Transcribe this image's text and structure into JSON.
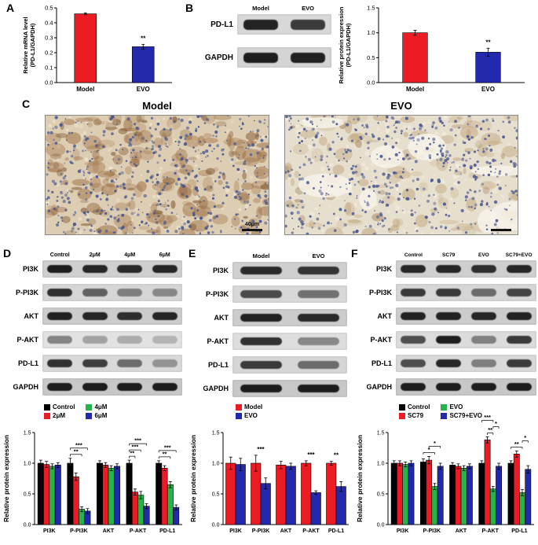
{
  "colors": {
    "red": "#ec1c24",
    "blue": "#2329ad",
    "green": "#27b24a",
    "black": "#000000"
  },
  "panels": {
    "A": {
      "letter": "A"
    },
    "B": {
      "letter": "B",
      "blot": {
        "label_width": 48,
        "lanes": [
          "Model",
          "EVO"
        ],
        "rows": [
          {
            "label": "PD-L1",
            "bands": [
              0.92,
              0.8
            ],
            "bg": "#d8d8d8"
          },
          {
            "label": "GAPDH",
            "bands": [
              0.95,
              0.93
            ],
            "bg": "#d4d4d4"
          }
        ]
      }
    },
    "C": {
      "letter": "C",
      "images": [
        {
          "title": "Model",
          "scale_label": "40μm",
          "bg": "#ddcdb2",
          "blob_color": "#96653a",
          "blob2_color": "#6e4218",
          "nuclei_color": "#44548e",
          "light_color": "#efe5cf",
          "patch_color": "#f6f1e7",
          "blobs": 150,
          "blobs2": 60,
          "nuclei": 520,
          "lights": 150,
          "patches": 0
        },
        {
          "title": "EVO",
          "scale_label": "",
          "bg": "#e7dfcd",
          "blob_color": "#bb9c72",
          "blob2_color": "#9a7a50",
          "nuclei_color": "#4a5890",
          "light_color": "#f3ecdd",
          "patch_color": "#f7f3ea",
          "blobs": 90,
          "blobs2": 25,
          "nuclei": 500,
          "lights": 200,
          "patches": 8
        }
      ]
    },
    "D": {
      "letter": "D",
      "blot": {
        "label_width": 48,
        "lanes": [
          "Control",
          "2μM",
          "4μM",
          "6μM"
        ],
        "rows": [
          {
            "label": "PI3K",
            "bands": [
              0.95,
              0.9,
              0.88,
              0.9
            ],
            "bg": "#cfcfcf"
          },
          {
            "label": "P-PI3K",
            "bands": [
              0.85,
              0.6,
              0.45,
              0.4
            ],
            "bg": "#d6d6d6"
          },
          {
            "label": "AKT",
            "bands": [
              0.92,
              0.9,
              0.86,
              0.9
            ],
            "bg": "#cccccc"
          },
          {
            "label": "P-AKT",
            "bands": [
              0.45,
              0.3,
              0.26,
              0.22
            ],
            "bg": "#e2e2e2"
          },
          {
            "label": "PD-L1",
            "bands": [
              0.85,
              0.78,
              0.55,
              0.35
            ],
            "bg": "#d9d9d9"
          },
          {
            "label": "GAPDH",
            "bands": [
              0.95,
              0.95,
              0.95,
              0.95
            ],
            "bg": "#c8c8c8"
          }
        ]
      }
    },
    "E": {
      "letter": "E",
      "blot": {
        "label_width": 52,
        "lanes": [
          "Model",
          "EVO"
        ],
        "rows": [
          {
            "label": "PI3K",
            "bands": [
              0.88,
              0.82
            ],
            "bg": "#cfcfcf"
          },
          {
            "label": "P-PI3K",
            "bands": [
              0.72,
              0.52
            ],
            "bg": "#d8d8d8"
          },
          {
            "label": "AKT",
            "bands": [
              0.92,
              0.88
            ],
            "bg": "#cccccc"
          },
          {
            "label": "P-AKT",
            "bands": [
              0.85,
              0.42
            ],
            "bg": "#dedede"
          },
          {
            "label": "PD-L1",
            "bands": [
              0.8,
              0.55
            ],
            "bg": "#d6d6d6"
          },
          {
            "label": "GAPDH",
            "bands": [
              0.95,
              0.95
            ],
            "bg": "#c8c8c8"
          }
        ]
      }
    },
    "F": {
      "letter": "F",
      "blot": {
        "label_width": 54,
        "lanes": [
          "Control",
          "SC79",
          "EVO",
          "SC79+EVO"
        ],
        "rows": [
          {
            "label": "PI3K",
            "bands": [
              0.9,
              0.9,
              0.85,
              0.9
            ],
            "bg": "#cfcfcf"
          },
          {
            "label": "P-PI3K",
            "bands": [
              0.8,
              0.8,
              0.55,
              0.75
            ],
            "bg": "#d6d6d6"
          },
          {
            "label": "AKT",
            "bands": [
              0.92,
              0.92,
              0.9,
              0.92
            ],
            "bg": "#cccccc"
          },
          {
            "label": "P-AKT",
            "bands": [
              0.7,
              0.95,
              0.45,
              0.8
            ],
            "bg": "#dcdcdc"
          },
          {
            "label": "PD-L1",
            "bands": [
              0.7,
              0.9,
              0.45,
              0.8
            ],
            "bg": "#d9d9d9"
          },
          {
            "label": "GAPDH",
            "bands": [
              0.95,
              0.95,
              0.95,
              0.95
            ],
            "bg": "#c8c8c8"
          }
        ]
      }
    }
  },
  "chart_data": [
    {
      "panel": "A",
      "type": "bar",
      "title": "",
      "ylabel": "Relative mRNA level\n(PD-L1/GAPDH)",
      "ylim": [
        0,
        0.5
      ],
      "yticks": [
        0,
        0.1,
        0.2,
        0.3,
        0.4,
        0.5
      ],
      "categories": [
        "Model",
        "EVO"
      ],
      "values": [
        0.46,
        0.24
      ],
      "errors": [
        0.006,
        0.016
      ],
      "bar_colors": [
        "#ec1c24",
        "#2329ad"
      ],
      "annotations": [
        {
          "cat": 1,
          "label": "**"
        }
      ]
    },
    {
      "panel": "B",
      "type": "bar",
      "title": "",
      "ylabel": "Relative protein expression\n(PD-L1/GAPDH)",
      "ylim": [
        0,
        1.5
      ],
      "yticks": [
        0,
        0.5,
        1.0,
        1.5
      ],
      "categories": [
        "Model",
        "EVO"
      ],
      "values": [
        1.0,
        0.61
      ],
      "errors": [
        0.05,
        0.08
      ],
      "bar_colors": [
        "#ec1c24",
        "#2329ad"
      ],
      "annotations": [
        {
          "cat": 1,
          "label": "**"
        }
      ]
    },
    {
      "panel": "D",
      "type": "grouped-bar",
      "title": "",
      "ylabel": "Relative protein expression",
      "ylim": [
        0,
        1.5
      ],
      "yticks": [
        0,
        0.5,
        1.0,
        1.5
      ],
      "categories": [
        "PI3K",
        "P-PI3K",
        "AKT",
        "P-AKT",
        "PD-L1"
      ],
      "series": [
        {
          "name": "Control",
          "color": "#000000",
          "values": [
            1.0,
            1.0,
            1.0,
            1.0,
            1.0
          ],
          "errors": [
            0.05,
            0.08,
            0.04,
            0.05,
            0.04
          ]
        },
        {
          "name": "2μM",
          "color": "#ec1c24",
          "values": [
            0.98,
            0.78,
            0.97,
            0.53,
            0.92
          ],
          "errors": [
            0.05,
            0.06,
            0.04,
            0.05,
            0.04
          ]
        },
        {
          "name": "4μM",
          "color": "#27b24a",
          "values": [
            0.95,
            0.25,
            0.92,
            0.48,
            0.65
          ],
          "errors": [
            0.04,
            0.04,
            0.04,
            0.06,
            0.05
          ]
        },
        {
          "name": "6μM",
          "color": "#2329ad",
          "values": [
            0.97,
            0.22,
            0.95,
            0.3,
            0.28
          ],
          "errors": [
            0.04,
            0.04,
            0.04,
            0.04,
            0.04
          ]
        }
      ],
      "annotations": [
        {
          "cat": 1,
          "s1": 0,
          "s2": 2,
          "label": "**",
          "level": 0
        },
        {
          "cat": 1,
          "s1": 0,
          "s2": 3,
          "label": "***",
          "level": 1
        },
        {
          "cat": 3,
          "s1": 0,
          "s2": 1,
          "label": "**",
          "level": 0
        },
        {
          "cat": 3,
          "s1": 0,
          "s2": 2,
          "label": "***",
          "level": 1
        },
        {
          "cat": 3,
          "s1": 0,
          "s2": 3,
          "label": "***",
          "level": 2
        },
        {
          "cat": 4,
          "s1": 0,
          "s2": 2,
          "label": "**",
          "level": 0
        },
        {
          "cat": 4,
          "s1": 0,
          "s2": 3,
          "label": "***",
          "level": 1
        }
      ]
    },
    {
      "panel": "E",
      "type": "grouped-bar",
      "title": "",
      "ylabel": "Relative protein expression",
      "ylim": [
        0,
        1.5
      ],
      "yticks": [
        0,
        0.5,
        1.0,
        1.5
      ],
      "categories": [
        "PI3K",
        "P-PI3K",
        "AKT",
        "P-AKT",
        "PD-L1"
      ],
      "series": [
        {
          "name": "Model",
          "color": "#ec1c24",
          "values": [
            1.0,
            1.0,
            0.97,
            1.0,
            1.0
          ],
          "errors": [
            0.1,
            0.13,
            0.06,
            0.04,
            0.03
          ]
        },
        {
          "name": "EVO",
          "color": "#2329ad",
          "values": [
            0.98,
            0.67,
            0.95,
            0.52,
            0.62
          ],
          "errors": [
            0.1,
            0.09,
            0.05,
            0.03,
            0.08
          ]
        }
      ],
      "annotations": [
        {
          "cat": 1,
          "label": "***"
        },
        {
          "cat": 3,
          "label": "***"
        },
        {
          "cat": 4,
          "label": "**"
        }
      ]
    },
    {
      "panel": "F",
      "type": "grouped-bar",
      "title": "",
      "ylabel": "Relative protein expression",
      "ylim": [
        0,
        1.5
      ],
      "yticks": [
        0,
        0.5,
        1.0,
        1.5
      ],
      "categories": [
        "PI3K",
        "P-PI3K",
        "AKT",
        "P-AKT",
        "PD-L1"
      ],
      "series": [
        {
          "name": "Control",
          "color": "#000000",
          "values": [
            1.0,
            1.02,
            0.97,
            1.0,
            1.0
          ],
          "errors": [
            0.04,
            0.05,
            0.04,
            0.04,
            0.04
          ]
        },
        {
          "name": "SC79",
          "color": "#ec1c24",
          "values": [
            1.0,
            1.05,
            0.95,
            1.38,
            1.15
          ],
          "errors": [
            0.04,
            0.06,
            0.04,
            0.05,
            0.05
          ]
        },
        {
          "name": "EVO",
          "color": "#27b24a",
          "values": [
            0.98,
            0.62,
            0.92,
            0.58,
            0.52
          ],
          "errors": [
            0.04,
            0.05,
            0.04,
            0.04,
            0.05
          ]
        },
        {
          "name": "SC79+EVO",
          "color": "#2329ad",
          "values": [
            1.0,
            0.95,
            0.95,
            0.95,
            0.9
          ],
          "errors": [
            0.04,
            0.05,
            0.04,
            0.05,
            0.06
          ]
        }
      ],
      "annotations": [
        {
          "cat": 1,
          "s1": 0,
          "s2": 2,
          "label": "*",
          "level": 0
        },
        {
          "cat": 1,
          "s1": 1,
          "s2": 3,
          "label": "*",
          "level": 1
        },
        {
          "cat": 3,
          "s1": 1,
          "s2": 2,
          "label": "**",
          "level": 0
        },
        {
          "cat": 3,
          "s1": 2,
          "s2": 3,
          "label": "*",
          "level": 1
        },
        {
          "cat": 3,
          "s1": 0,
          "s2": 2,
          "label": "***",
          "level": 2
        },
        {
          "cat": 4,
          "s1": 0,
          "s2": 2,
          "label": "**",
          "level": 0
        },
        {
          "cat": 4,
          "s1": 2,
          "s2": 3,
          "label": "*",
          "level": 1
        }
      ]
    }
  ]
}
